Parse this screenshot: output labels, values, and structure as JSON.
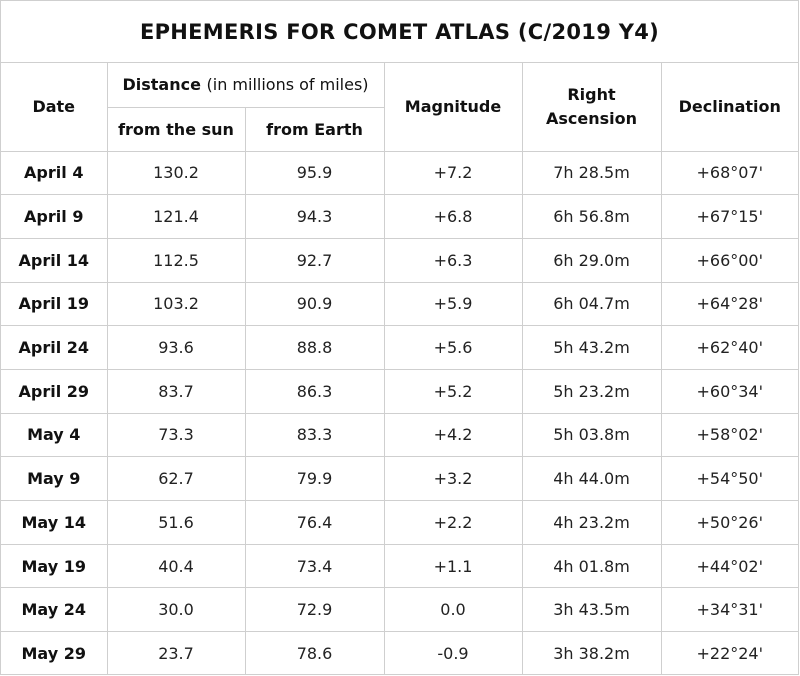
{
  "title": "EPHEMERIS FOR COMET ATLAS (C/2019 Y4)",
  "headers": {
    "date": "Date",
    "distance": "Distance",
    "distance_note": "(in millions of miles)",
    "from_sun": "from the sun",
    "from_earth": "from Earth",
    "magnitude": "Magnitude",
    "ra_line1": "Right",
    "ra_line2": "Ascension",
    "declination": "Declination"
  },
  "rows": [
    {
      "date": "April 4",
      "sun": "130.2",
      "earth": "95.9",
      "mag": "+7.2",
      "ra": "7h 28.5m",
      "dec": "+68°07'"
    },
    {
      "date": "April 9",
      "sun": "121.4",
      "earth": "94.3",
      "mag": "+6.8",
      "ra": "6h 56.8m",
      "dec": "+67°15'"
    },
    {
      "date": "April 14",
      "sun": "112.5",
      "earth": "92.7",
      "mag": "+6.3",
      "ra": "6h 29.0m",
      "dec": "+66°00'"
    },
    {
      "date": "April 19",
      "sun": "103.2",
      "earth": "90.9",
      "mag": "+5.9",
      "ra": "6h 04.7m",
      "dec": "+64°28'"
    },
    {
      "date": "April 24",
      "sun": "93.6",
      "earth": "88.8",
      "mag": "+5.6",
      "ra": "5h 43.2m",
      "dec": "+62°40'"
    },
    {
      "date": "April 29",
      "sun": "83.7",
      "earth": "86.3",
      "mag": "+5.2",
      "ra": "5h 23.2m",
      "dec": "+60°34'"
    },
    {
      "date": "May 4",
      "sun": "73.3",
      "earth": "83.3",
      "mag": "+4.2",
      "ra": "5h 03.8m",
      "dec": "+58°02'"
    },
    {
      "date": "May 9",
      "sun": "62.7",
      "earth": "79.9",
      "mag": "+3.2",
      "ra": "4h 44.0m",
      "dec": "+54°50'"
    },
    {
      "date": "May 14",
      "sun": "51.6",
      "earth": "76.4",
      "mag": "+2.2",
      "ra": "4h 23.2m",
      "dec": "+50°26'"
    },
    {
      "date": "May 19",
      "sun": "40.4",
      "earth": "73.4",
      "mag": "+1.1",
      "ra": "4h 01.8m",
      "dec": "+44°02'"
    },
    {
      "date": "May 24",
      "sun": "30.0",
      "earth": "72.9",
      "mag": "0.0",
      "ra": "3h 43.5m",
      "dec": "+34°31'"
    },
    {
      "date": "May 29",
      "sun": "23.7",
      "earth": "78.6",
      "mag": "-0.9",
      "ra": "3h 38.2m",
      "dec": "+22°24'"
    }
  ]
}
